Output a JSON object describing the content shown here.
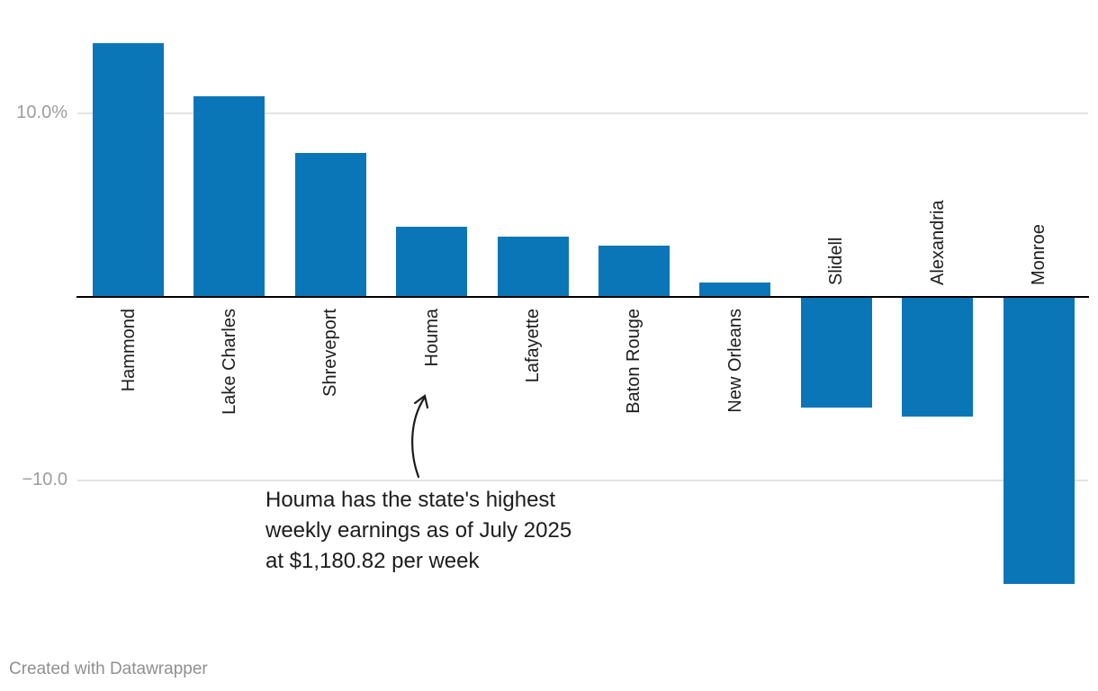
{
  "chart_data": {
    "type": "bar",
    "categories": [
      "Hammond",
      "Lake Charles",
      "Shreveport",
      "Houma",
      "Lafayette",
      "Baton Rouge",
      "New Orleans",
      "Slidell",
      "Alexandria",
      "Monroe"
    ],
    "values": [
      13.8,
      10.9,
      7.8,
      3.8,
      3.3,
      2.8,
      0.8,
      -6.0,
      -6.5,
      -15.6
    ],
    "title": "",
    "xlabel": "",
    "ylabel": "",
    "ylim": [
      -16.5,
      14.5
    ],
    "yticks": [
      {
        "value": 10,
        "label": "10.0%"
      },
      {
        "value": -10,
        "label": "−10.0"
      }
    ],
    "grid": "horizontal",
    "legend": "none",
    "bar_color": "#0a76b7"
  },
  "annotation": {
    "lines": [
      "Houma has the state's highest",
      "weekly earnings as of July 2025",
      "at $1,180.82 per week"
    ]
  },
  "footer": {
    "text": "Created with Datawrapper"
  }
}
